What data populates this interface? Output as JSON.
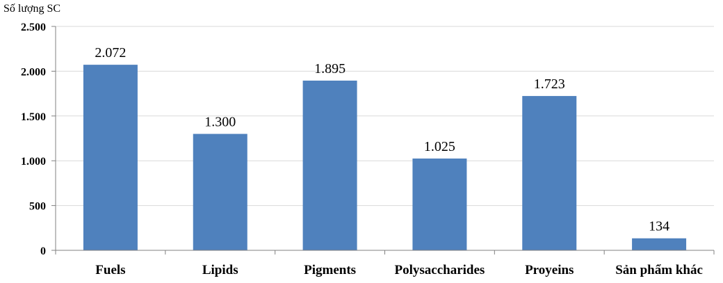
{
  "chart_data": {
    "type": "bar",
    "title": "",
    "xlabel": "",
    "ylabel": "Số lượng SC",
    "categories": [
      "Fuels",
      "Lipids",
      "Pigments",
      "Polysaccharides",
      "Proyeins",
      "Sản phẩm khác"
    ],
    "values": [
      2072,
      1300,
      1895,
      1025,
      1723,
      134
    ],
    "value_labels": [
      "2.072",
      "1.300",
      "1.895",
      "1.025",
      "1.723",
      "134"
    ],
    "yticks": [
      0,
      500,
      1000,
      1500,
      2000,
      2500
    ],
    "ytick_labels": [
      "0",
      "500",
      "1.000",
      "1.500",
      "2.000",
      "2.500"
    ],
    "ylim": [
      0,
      2500
    ],
    "grid": true,
    "legend": "none",
    "bar_color": "#4f81bd",
    "grid_color": "#d9d9d9",
    "axis_color": "#808080"
  }
}
